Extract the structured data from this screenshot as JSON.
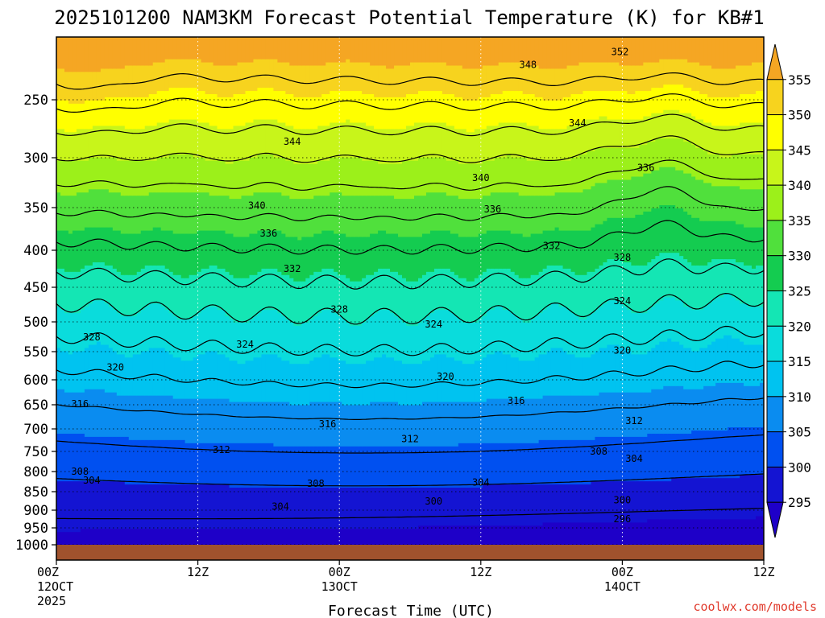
{
  "chart_data": {
    "type": "heatmap",
    "title": "2025101200 NAM3KM Forecast Potential Temperature (K) for KB#1",
    "xlabel": "Forecast Time (UTC)",
    "ylabel": "",
    "credit": "coolwx.com/models",
    "x_range_hours": [
      0,
      60
    ],
    "y_range_hpa": [
      1000,
      200
    ],
    "y_ticks": [
      "250",
      "300",
      "350",
      "400",
      "450",
      "500",
      "550",
      "600",
      "650",
      "700",
      "750",
      "800",
      "850",
      "900",
      "950",
      "1000"
    ],
    "x_ticks": [
      {
        "hour": 0,
        "l1": "00Z",
        "l2": "12OCT",
        "l3": "2025"
      },
      {
        "hour": 12,
        "l1": "12Z",
        "l2": "",
        "l3": ""
      },
      {
        "hour": 24,
        "l1": "00Z",
        "l2": "13OCT",
        "l3": ""
      },
      {
        "hour": 36,
        "l1": "12Z",
        "l2": "",
        "l3": ""
      },
      {
        "hour": 48,
        "l1": "00Z",
        "l2": "14OCT",
        "l3": ""
      },
      {
        "hour": 60,
        "l1": "12Z",
        "l2": "",
        "l3": ""
      }
    ],
    "colorbar": {
      "levels": [
        "355",
        "350",
        "345",
        "340",
        "335",
        "330",
        "325",
        "320",
        "315",
        "310",
        "305",
        "300",
        "295"
      ],
      "colors": [
        "#f5a623",
        "#f7d31e",
        "#ffff00",
        "#c8f51a",
        "#9cf01a",
        "#50e03c",
        "#14cc50",
        "#14e6b4",
        "#0adcdc",
        "#00c3f0",
        "#0a8cf0",
        "#0050f0",
        "#1414d2",
        "#1e00c8"
      ]
    },
    "contour_levels_K": [
      296,
      300,
      304,
      308,
      312,
      316,
      320,
      324,
      328,
      332,
      336,
      340,
      344,
      348,
      352
    ],
    "contour_labels": [
      {
        "text": "352",
        "hour": 47.8,
        "hpa": 212
      },
      {
        "text": "348",
        "hour": 40.0,
        "hpa": 222
      },
      {
        "text": "344",
        "hour": 44.2,
        "hpa": 270
      },
      {
        "text": "344",
        "hour": 20.0,
        "hpa": 286
      },
      {
        "text": "340",
        "hour": 36.0,
        "hpa": 320
      },
      {
        "text": "340",
        "hour": 17.0,
        "hpa": 348
      },
      {
        "text": "336",
        "hour": 50.0,
        "hpa": 310
      },
      {
        "text": "336",
        "hour": 37.0,
        "hpa": 352
      },
      {
        "text": "336",
        "hour": 18.0,
        "hpa": 380
      },
      {
        "text": "332",
        "hour": 42.0,
        "hpa": 395
      },
      {
        "text": "332",
        "hour": 20.0,
        "hpa": 425
      },
      {
        "text": "328",
        "hour": 48.0,
        "hpa": 410
      },
      {
        "text": "328",
        "hour": 24.0,
        "hpa": 482
      },
      {
        "text": "328",
        "hour": 3.0,
        "hpa": 526
      },
      {
        "text": "324",
        "hour": 48.0,
        "hpa": 470
      },
      {
        "text": "324",
        "hour": 32.0,
        "hpa": 504
      },
      {
        "text": "324",
        "hour": 16.0,
        "hpa": 538
      },
      {
        "text": "320",
        "hour": 48.0,
        "hpa": 548
      },
      {
        "text": "320",
        "hour": 33.0,
        "hpa": 594
      },
      {
        "text": "320",
        "hour": 5.0,
        "hpa": 578
      },
      {
        "text": "316",
        "hour": 39.0,
        "hpa": 642
      },
      {
        "text": "316",
        "hour": 23.0,
        "hpa": 690
      },
      {
        "text": "316",
        "hour": 2.0,
        "hpa": 648
      },
      {
        "text": "312",
        "hour": 49.0,
        "hpa": 683
      },
      {
        "text": "312",
        "hour": 30.0,
        "hpa": 722
      },
      {
        "text": "312",
        "hour": 14.0,
        "hpa": 746
      },
      {
        "text": "308",
        "hour": 46.0,
        "hpa": 750
      },
      {
        "text": "308",
        "hour": 22.0,
        "hpa": 830
      },
      {
        "text": "308",
        "hour": 2.0,
        "hpa": 800
      },
      {
        "text": "304",
        "hour": 49.0,
        "hpa": 768
      },
      {
        "text": "304",
        "hour": 36.0,
        "hpa": 827
      },
      {
        "text": "304",
        "hour": 19.0,
        "hpa": 890
      },
      {
        "text": "304",
        "hour": 3.0,
        "hpa": 822
      },
      {
        "text": "300",
        "hour": 48.0,
        "hpa": 873
      },
      {
        "text": "300",
        "hour": 32.0,
        "hpa": 876
      },
      {
        "text": "296",
        "hour": 48.0,
        "hpa": 925
      }
    ]
  }
}
